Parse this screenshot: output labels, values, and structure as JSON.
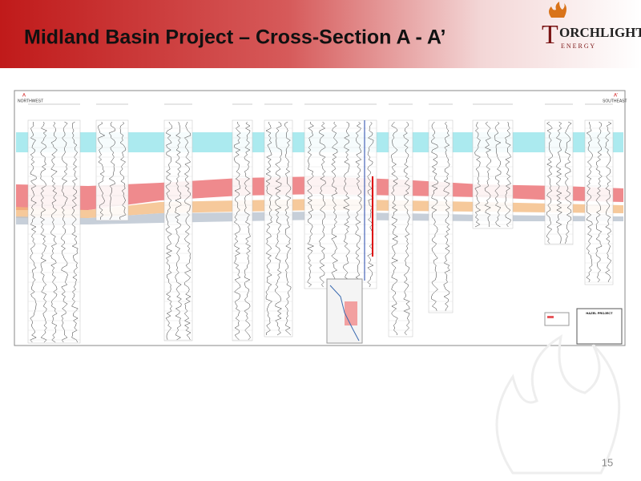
{
  "header": {
    "title": "Midland Basin Project – Cross-Section A - A’",
    "logo": {
      "initial": "T",
      "name": "ORCHLIGHT",
      "tagline": "E N E R G Y"
    }
  },
  "cross_section": {
    "left_label": "A",
    "left_direction": "NORTHWEST",
    "right_label": "A’",
    "right_direction": "SOUTHEAST",
    "legend_title": "HAZEL PROJECT"
  },
  "footer": {
    "page_number": "15"
  }
}
